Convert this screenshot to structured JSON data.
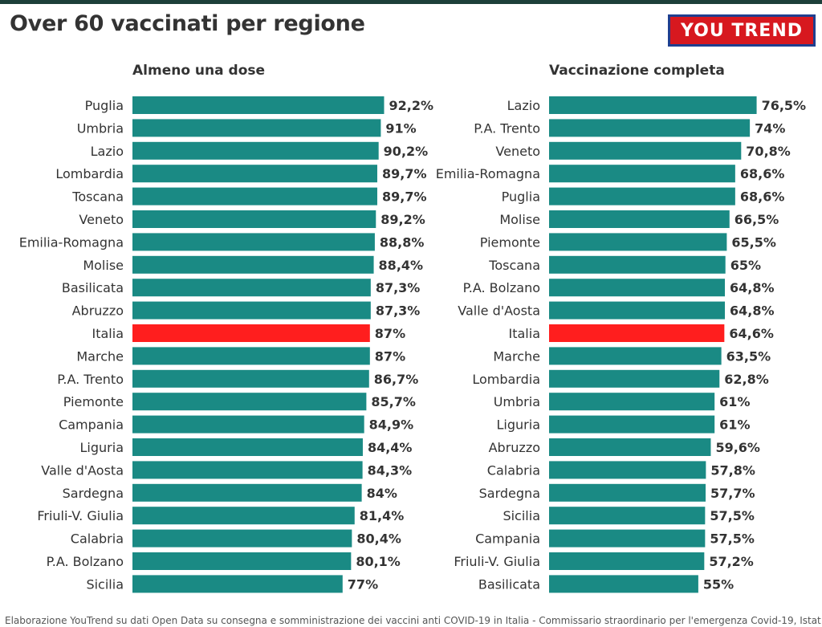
{
  "title": "Over 60 vaccinati per regione",
  "logo_text": "YOU TREND",
  "footnote": "Elaborazione YouTrend su dati Open Data su consegna e somministrazione dei vaccini anti COVID-19 in Italia - Commissario straordinario per l'emergenza Covid-19, Istat",
  "colors": {
    "bar": "#1a8a84",
    "highlight": "#ff1e1e",
    "logo_bg": "#d7181f",
    "logo_border": "#1f3f8f"
  },
  "chart_data": [
    {
      "type": "bar",
      "orientation": "horizontal",
      "title": "Almeno una dose",
      "highlight": "Italia",
      "categories": [
        "Puglia",
        "Umbria",
        "Lazio",
        "Lombardia",
        "Toscana",
        "Veneto",
        "Emilia-Romagna",
        "Molise",
        "Basilicata",
        "Abruzzo",
        "Italia",
        "Marche",
        "P.A. Trento",
        "Piemonte",
        "Campania",
        "Liguria",
        "Valle d'Aosta",
        "Sardegna",
        "Friuli-V. Giulia",
        "Calabria",
        "P.A. Bolzano",
        "Sicilia"
      ],
      "values": [
        92.2,
        91,
        90.2,
        89.7,
        89.7,
        89.2,
        88.8,
        88.4,
        87.3,
        87.3,
        87,
        87,
        86.7,
        85.7,
        84.9,
        84.4,
        84.3,
        84,
        81.4,
        80.4,
        80.1,
        77
      ],
      "labels": [
        "92,2%",
        "91%",
        "90,2%",
        "89,7%",
        "89,7%",
        "89,2%",
        "88,8%",
        "88,4%",
        "87,3%",
        "87,3%",
        "87%",
        "87%",
        "86,7%",
        "85,7%",
        "84,9%",
        "84,4%",
        "84,3%",
        "84%",
        "81,4%",
        "80,4%",
        "80,1%",
        "77%"
      ],
      "xlim": [
        0,
        100
      ]
    },
    {
      "type": "bar",
      "orientation": "horizontal",
      "title": "Vaccinazione completa",
      "highlight": "Italia",
      "categories": [
        "Lazio",
        "P.A. Trento",
        "Veneto",
        "Emilia-Romagna",
        "Puglia",
        "Molise",
        "Piemonte",
        "Toscana",
        "P.A. Bolzano",
        "Valle d'Aosta",
        "Italia",
        "Marche",
        "Lombardia",
        "Umbria",
        "Liguria",
        "Abruzzo",
        "Calabria",
        "Sardegna",
        "Sicilia",
        "Campania",
        "Friuli-V. Giulia",
        "Basilicata"
      ],
      "values": [
        76.5,
        74,
        70.8,
        68.6,
        68.6,
        66.5,
        65.5,
        65,
        64.8,
        64.8,
        64.6,
        63.5,
        62.8,
        61,
        61,
        59.6,
        57.8,
        57.7,
        57.5,
        57.5,
        57.2,
        55
      ],
      "labels": [
        "76,5%",
        "74%",
        "70,8%",
        "68,6%",
        "68,6%",
        "66,5%",
        "65,5%",
        "65%",
        "64,8%",
        "64,8%",
        "64,6%",
        "63,5%",
        "62,8%",
        "61%",
        "61%",
        "59,6%",
        "57,8%",
        "57,7%",
        "57,5%",
        "57,5%",
        "57,2%",
        "55%"
      ],
      "xlim": [
        0,
        100
      ]
    }
  ]
}
